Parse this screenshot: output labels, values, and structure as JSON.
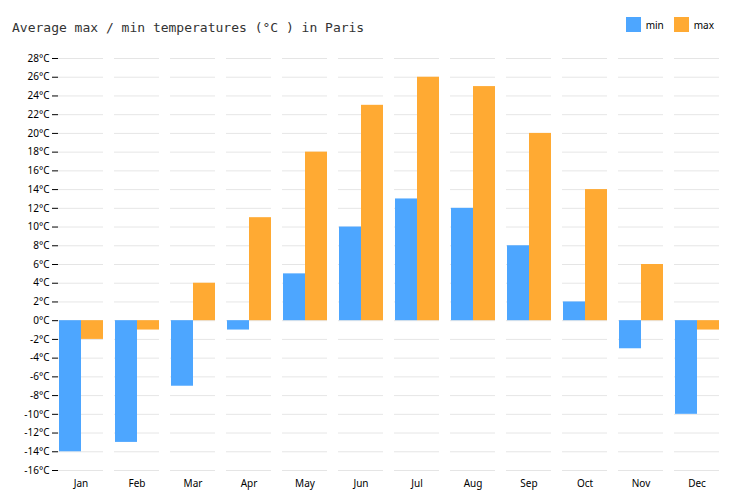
{
  "chart_data": {
    "type": "bar",
    "title": "Average max / min temperatures (°C ) in Paris",
    "categories": [
      "Jan",
      "Feb",
      "Mar",
      "Apr",
      "May",
      "Jun",
      "Jul",
      "Aug",
      "Sep",
      "Oct",
      "Nov",
      "Dec"
    ],
    "series": [
      {
        "name": "min",
        "color": "#4da6ff",
        "values": [
          -14,
          -13,
          -7,
          -1,
          5,
          10,
          13,
          12,
          8,
          2,
          -3,
          -10
        ]
      },
      {
        "name": "max",
        "color": "#ffaa33",
        "values": [
          -2,
          -1,
          4,
          11,
          18,
          23,
          26,
          25,
          20,
          14,
          6,
          -1
        ]
      }
    ],
    "ylim": [
      -16,
      28
    ],
    "yticks": [
      {
        "value": -16,
        "label": "-16°C"
      },
      {
        "value": -14,
        "label": "-14°C"
      },
      {
        "value": -12,
        "label": "-12°C"
      },
      {
        "value": -10,
        "label": "-10°C"
      },
      {
        "value": -8,
        "label": "-8°C"
      },
      {
        "value": -6,
        "label": "-6°C"
      },
      {
        "value": -4,
        "label": "-4°C"
      },
      {
        "value": -2,
        "label": "-2°C"
      },
      {
        "value": 0,
        "label": "0°C"
      },
      {
        "value": 2,
        "label": "2°C"
      },
      {
        "value": 4,
        "label": "4°C"
      },
      {
        "value": 6,
        "label": "6°C"
      },
      {
        "value": 8,
        "label": "8°C"
      },
      {
        "value": 10,
        "label": "10°C"
      },
      {
        "value": 12,
        "label": "12°C"
      },
      {
        "value": 14,
        "label": "14°C"
      },
      {
        "value": 16,
        "label": "16°C"
      },
      {
        "value": 18,
        "label": "18°C"
      },
      {
        "value": 20,
        "label": "20°C"
      },
      {
        "value": 22,
        "label": "22°C"
      },
      {
        "value": 24,
        "label": "24°C"
      },
      {
        "value": 26,
        "label": "26°C"
      },
      {
        "value": 28,
        "label": "28°C"
      }
    ],
    "grid": true,
    "legend": "upper right"
  }
}
